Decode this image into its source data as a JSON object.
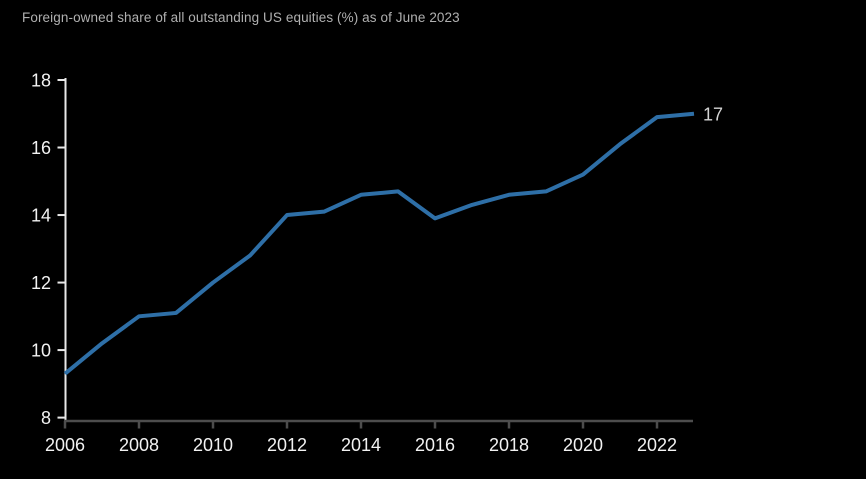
{
  "header": {
    "title": "Foreign-owned share of all outstanding US equities (%) as of June 2023"
  },
  "chart_data": {
    "type": "line",
    "title": "Foreign-owned share of all outstanding US equities (%) as of June 2023",
    "x": [
      2006,
      2007,
      2008,
      2009,
      2010,
      2011,
      2012,
      2013,
      2014,
      2015,
      2016,
      2017,
      2018,
      2019,
      2020,
      2021,
      2022,
      2023
    ],
    "series": [
      {
        "name": "Foreign-owned share of all outstanding US equities (%)",
        "values": [
          9.3,
          10.2,
          11.0,
          11.1,
          12.0,
          12.8,
          14.0,
          14.1,
          14.6,
          14.7,
          13.9,
          14.3,
          14.6,
          14.7,
          15.2,
          16.1,
          16.9,
          17.0
        ]
      }
    ],
    "end_label": "17",
    "xlabel": "",
    "ylabel": "",
    "xlim": [
      2006,
      2023
    ],
    "ylim": [
      8,
      18
    ],
    "yticks": [
      18,
      16,
      14,
      12,
      10,
      8
    ],
    "xticks": [
      2006,
      2008,
      2010,
      2012,
      2014,
      2016,
      2018,
      2020,
      2022
    ],
    "grid": false,
    "legend": "none",
    "colors": {
      "background": "#000000",
      "line": "#2e6fa7",
      "title_text": "#b0b0b0",
      "tick_label_text": "#f2f2f2",
      "end_label_text": "#d4d4d4",
      "y_axis": "#e8e8e8",
      "x_axis": "#4d4d4d"
    }
  }
}
